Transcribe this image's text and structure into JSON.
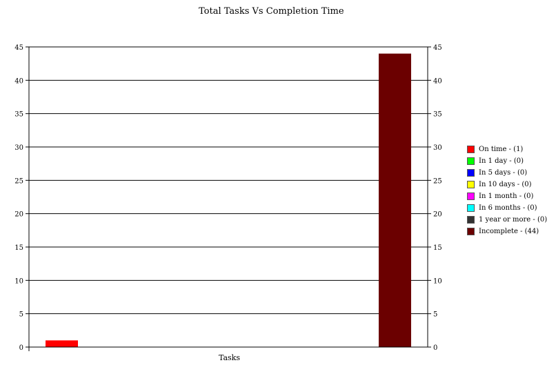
{
  "chart_data": {
    "type": "bar",
    "title": "Total Tasks Vs Completion Time",
    "xlabel": "Tasks",
    "ylabel": "",
    "ylim": [
      0,
      45
    ],
    "yticks": [
      0,
      5,
      10,
      15,
      20,
      25,
      30,
      35,
      40,
      45
    ],
    "grid": true,
    "legend_position": "right",
    "series": [
      {
        "name": "On time - (1)",
        "value": 1,
        "color": "#ff0000"
      },
      {
        "name": "In 1 day - (0)",
        "value": 0,
        "color": "#00ff00"
      },
      {
        "name": "In 5 days - (0)",
        "value": 0,
        "color": "#0000ff"
      },
      {
        "name": "In 10 days - (0)",
        "value": 0,
        "color": "#ffff00"
      },
      {
        "name": "In 1 month - (0)",
        "value": 0,
        "color": "#ff00ff"
      },
      {
        "name": "In 6 months - (0)",
        "value": 0,
        "color": "#00ffff"
      },
      {
        "name": "1 year or more - (0)",
        "value": 0,
        "color": "#333333"
      },
      {
        "name": "Incomplete - (44)",
        "value": 44,
        "color": "#6b0000"
      }
    ]
  }
}
